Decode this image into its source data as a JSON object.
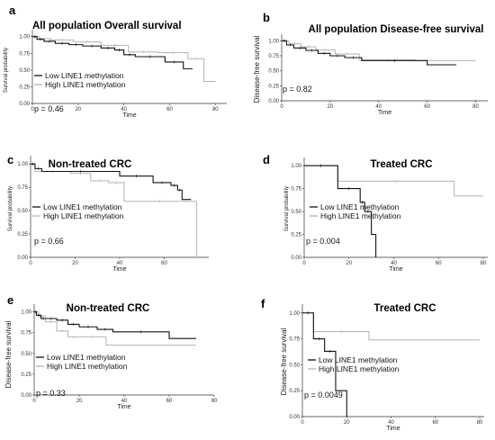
{
  "chart_data": [
    {
      "type": "line",
      "letter": "a",
      "title": "All population Overall survival",
      "xlabel": "Time",
      "ylabel": "Survival probability",
      "xlim": [
        0,
        85
      ],
      "ylim": [
        0,
        1.05
      ],
      "xticks": [
        "0",
        "20",
        "40",
        "60",
        "80"
      ],
      "yticks": [
        "0.00",
        "0.25",
        "0.50",
        "0.75",
        "1.00"
      ],
      "legend_position": "left-middle",
      "p_label": "p = 0.46",
      "series": [
        {
          "name": "Low LINE1 methylation",
          "color": "#111111",
          "x": [
            0,
            2,
            5,
            10,
            16,
            22,
            30,
            36,
            40,
            45,
            58,
            66,
            70
          ],
          "y": [
            1.0,
            0.96,
            0.93,
            0.9,
            0.88,
            0.86,
            0.83,
            0.8,
            0.73,
            0.7,
            0.62,
            0.52,
            0.52
          ]
        },
        {
          "name": "High LINE1 methylation",
          "color": "#b3b3b3",
          "x": [
            0,
            3,
            8,
            18,
            30,
            42,
            55,
            68,
            75,
            80
          ],
          "y": [
            1.0,
            0.97,
            0.95,
            0.92,
            0.87,
            0.77,
            0.76,
            0.67,
            0.33,
            0.33
          ]
        }
      ]
    },
    {
      "type": "line",
      "letter": "b",
      "title": "All population Disease-free survival",
      "xlabel": "Time",
      "ylabel": "Disease-free survival",
      "xlim": [
        0,
        85
      ],
      "ylim": [
        0,
        1.05
      ],
      "xticks": [
        "0",
        "20",
        "40",
        "60",
        "80"
      ],
      "yticks": [
        "0.00",
        "0.25",
        "0.50",
        "0.75",
        "1.00"
      ],
      "p_label": "p = 0.82",
      "series": [
        {
          "name": "Low LINE1 methylation",
          "color": "#111111",
          "x": [
            0,
            2,
            5,
            10,
            15,
            20,
            26,
            33,
            60,
            72
          ],
          "y": [
            1.0,
            0.93,
            0.88,
            0.84,
            0.79,
            0.75,
            0.72,
            0.67,
            0.6,
            0.6
          ]
        },
        {
          "name": "High LINE1 methylation",
          "color": "#b3b3b3",
          "x": [
            0,
            3,
            8,
            14,
            22,
            32,
            55,
            80
          ],
          "y": [
            1.0,
            0.95,
            0.9,
            0.85,
            0.78,
            0.68,
            0.67,
            0.67
          ]
        }
      ]
    },
    {
      "type": "line",
      "letter": "c",
      "title": "Non-treated CRC",
      "xlabel": "Time",
      "ylabel": "Survival probability",
      "xlim": [
        0,
        80
      ],
      "ylim": [
        0,
        1.05
      ],
      "xticks": [
        "0",
        "20",
        "40",
        "60"
      ],
      "yticks": [
        "0.00",
        "0.25",
        "0.50",
        "0.75",
        "1.00"
      ],
      "legend_position": "left-middle",
      "p_label": "p = 0.66",
      "series": [
        {
          "name": "Low LINE1 methylation",
          "color": "#111111",
          "x": [
            0,
            2,
            5,
            40,
            55,
            63,
            66,
            68,
            72
          ],
          "y": [
            1.0,
            0.95,
            0.92,
            0.87,
            0.8,
            0.77,
            0.72,
            0.62,
            0.62
          ]
        },
        {
          "name": "High LINE1 methylation",
          "color": "#b3b3b3",
          "x": [
            0,
            2,
            18,
            27,
            35,
            42,
            74,
            74.5
          ],
          "y": [
            1.0,
            0.92,
            0.9,
            0.82,
            0.8,
            0.6,
            0.6,
            0.0
          ]
        }
      ]
    },
    {
      "type": "line",
      "letter": "d",
      "title": "Treated CRC",
      "xlabel": "Time",
      "ylabel": "Survival probability",
      "xlim": [
        0,
        82
      ],
      "ylim": [
        0,
        1.05
      ],
      "xticks": [
        "0",
        "20",
        "40",
        "60",
        "80"
      ],
      "yticks": [
        "0.00",
        "0.25",
        "0.50",
        "0.75",
        "1.00"
      ],
      "legend_position": "left-middle",
      "p_label": "p = 0.004",
      "series": [
        {
          "name": "Low LINE1 methylation",
          "color": "#111111",
          "x": [
            0,
            15,
            25,
            27,
            30,
            32
          ],
          "y": [
            1.0,
            0.75,
            0.6,
            0.5,
            0.25,
            0.0
          ]
        },
        {
          "name": "High LINE1 methylation",
          "color": "#b3b3b3",
          "x": [
            0,
            15,
            67,
            80
          ],
          "y": [
            1.0,
            0.83,
            0.67,
            0.67
          ]
        }
      ]
    },
    {
      "type": "line",
      "letter": "e",
      "title": "Non-treated CRC",
      "xlabel": "Time",
      "ylabel": "Disease-free survival",
      "xlim": [
        0,
        80
      ],
      "ylim": [
        0,
        1.05
      ],
      "xticks": [
        "0",
        "20",
        "40",
        "60",
        "80"
      ],
      "yticks": [
        "0.00",
        "0.25",
        "0.50",
        "0.75",
        "1.00"
      ],
      "legend_position": "left-middle",
      "p_label": "p = 0.33",
      "series": [
        {
          "name": "Low LINE1 methylation",
          "color": "#111111",
          "x": [
            0,
            1,
            3,
            5,
            10,
            15,
            20,
            28,
            35,
            60,
            72
          ],
          "y": [
            1.0,
            0.96,
            0.92,
            0.92,
            0.9,
            0.85,
            0.82,
            0.79,
            0.76,
            0.68,
            0.68
          ]
        },
        {
          "name": "High LINE1 methylation",
          "color": "#b3b3b3",
          "x": [
            0,
            2,
            5,
            10,
            15,
            20,
            32,
            72
          ],
          "y": [
            1.0,
            0.95,
            0.88,
            0.77,
            0.7,
            0.7,
            0.6,
            0.6
          ]
        }
      ]
    },
    {
      "type": "line",
      "letter": "f",
      "title": "Treated CRC",
      "xlabel": "Time",
      "ylabel": "Disease-free survival",
      "xlim": [
        0,
        82
      ],
      "ylim": [
        0,
        1.05
      ],
      "xticks": [
        "0",
        "20",
        "40",
        "60",
        "80"
      ],
      "yticks": [
        "0.00",
        "0.25",
        "0.50",
        "0.75",
        "1.00"
      ],
      "legend_position": "left-middle",
      "p_label": "p = 0.0049",
      "series": [
        {
          "name": "Low LINE1 methylation",
          "color": "#111111",
          "x": [
            0,
            5,
            10,
            15,
            20
          ],
          "y": [
            1.0,
            0.75,
            0.63,
            0.25,
            0.0
          ]
        },
        {
          "name": "High LINE1 methylation",
          "color": "#b3b3b3",
          "x": [
            0,
            5,
            30,
            80
          ],
          "y": [
            1.0,
            0.82,
            0.74,
            0.74
          ]
        }
      ]
    }
  ]
}
